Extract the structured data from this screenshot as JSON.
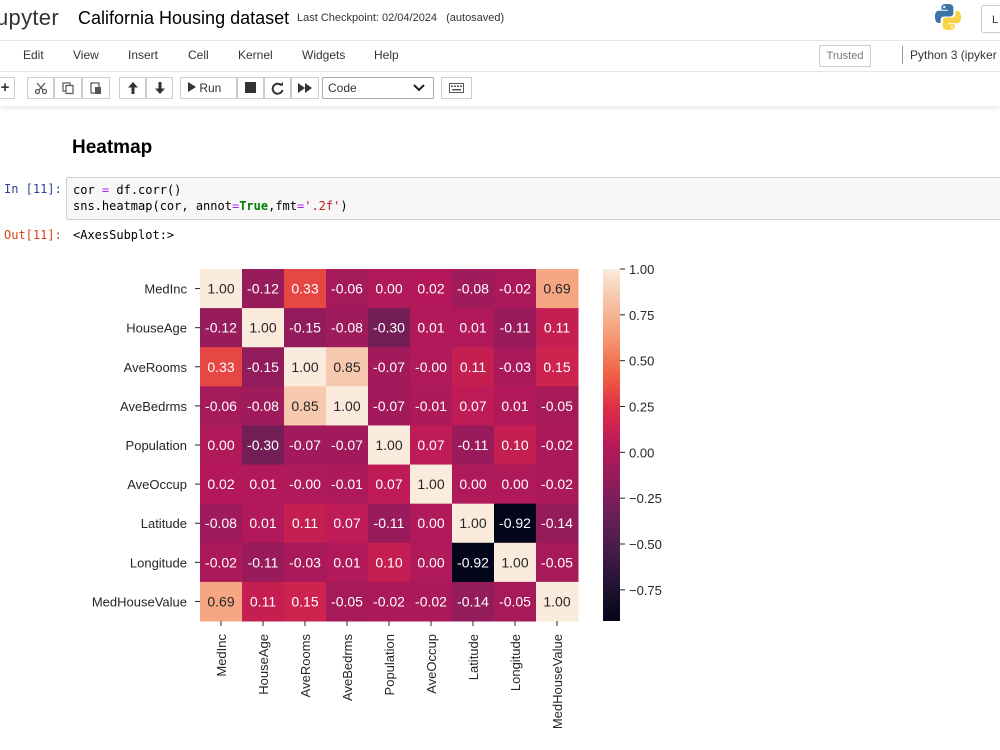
{
  "header": {
    "logo_text": "upyter",
    "notebook_title": "California Housing dataset",
    "checkpoint_label": "Last Checkpoint: 02/04/2024",
    "autosave_status": "(autosaved)",
    "login_label": "L"
  },
  "menubar": {
    "items": [
      "Edit",
      "View",
      "Insert",
      "Cell",
      "Kernel",
      "Widgets",
      "Help"
    ],
    "trusted_label": "Trusted",
    "kernel_label": "Python 3 (ipyker"
  },
  "toolbar": {
    "run_label": "Run",
    "cell_type": "Code"
  },
  "notebook": {
    "heading": "Heatmap",
    "in_prompt": "In [11]:",
    "out_prompt": "Out[11]:",
    "output_text": "<AxesSubplot:>"
  },
  "colors": {
    "accent_in": "#303f9f",
    "accent_out": "#d84315"
  },
  "chart_data": {
    "type": "heatmap",
    "labels": [
      "MedInc",
      "HouseAge",
      "AveRooms",
      "AveBedrms",
      "Population",
      "AveOccup",
      "Latitude",
      "Longitude",
      "MedHouseValue"
    ],
    "values": [
      [
        1.0,
        -0.12,
        0.33,
        -0.06,
        0.0,
        0.02,
        -0.08,
        -0.02,
        0.69
      ],
      [
        -0.12,
        1.0,
        -0.15,
        -0.08,
        -0.3,
        0.01,
        0.01,
        -0.11,
        0.11
      ],
      [
        0.33,
        -0.15,
        1.0,
        0.85,
        -0.07,
        -0.0,
        0.11,
        -0.03,
        0.15
      ],
      [
        -0.06,
        -0.08,
        0.85,
        1.0,
        -0.07,
        -0.01,
        0.07,
        0.01,
        -0.05
      ],
      [
        0.0,
        -0.3,
        -0.07,
        -0.07,
        1.0,
        0.07,
        -0.11,
        0.1,
        -0.02
      ],
      [
        0.02,
        0.01,
        -0.0,
        -0.01,
        0.07,
        1.0,
        0.0,
        0.0,
        -0.02
      ],
      [
        -0.08,
        0.01,
        0.11,
        0.07,
        -0.11,
        0.0,
        1.0,
        -0.92,
        -0.14
      ],
      [
        -0.02,
        -0.11,
        -0.03,
        0.01,
        0.1,
        0.0,
        -0.92,
        1.0,
        -0.05
      ],
      [
        0.69,
        0.11,
        0.15,
        -0.05,
        -0.02,
        -0.02,
        -0.14,
        -0.05,
        1.0
      ]
    ],
    "cell_labels": [
      [
        "1.00",
        "-0.12",
        "0.33",
        "-0.06",
        "0.00",
        "0.02",
        "-0.08",
        "-0.02",
        "0.69"
      ],
      [
        "-0.12",
        "1.00",
        "-0.15",
        "-0.08",
        "-0.30",
        "0.01",
        "0.01",
        "-0.11",
        "0.11"
      ],
      [
        "0.33",
        "-0.15",
        "1.00",
        "0.85",
        "-0.07",
        "-0.00",
        "0.11",
        "-0.03",
        "0.15"
      ],
      [
        "-0.06",
        "-0.08",
        "0.85",
        "1.00",
        "-0.07",
        "-0.01",
        "0.07",
        "0.01",
        "-0.05"
      ],
      [
        "0.00",
        "-0.30",
        "-0.07",
        "-0.07",
        "1.00",
        "0.07",
        "-0.11",
        "0.10",
        "-0.02"
      ],
      [
        "0.02",
        "0.01",
        "-0.00",
        "-0.01",
        "0.07",
        "1.00",
        "0.00",
        "0.00",
        "-0.02"
      ],
      [
        "-0.08",
        "0.01",
        "0.11",
        "0.07",
        "-0.11",
        "0.00",
        "1.00",
        "-0.92",
        "-0.14"
      ],
      [
        "-0.02",
        "-0.11",
        "-0.03",
        "0.01",
        "0.10",
        "0.00",
        "-0.92",
        "1.00",
        "-0.05"
      ],
      [
        "0.69",
        "0.11",
        "0.15",
        "-0.05",
        "-0.02",
        "-0.02",
        "-0.14",
        "-0.05",
        "1.00"
      ]
    ],
    "vmin": -0.92,
    "vmax": 1.0,
    "colormap": "rocket",
    "colorbar_ticks": [
      1.0,
      0.75,
      0.5,
      0.25,
      0.0,
      -0.25,
      -0.5,
      -0.75
    ],
    "colorbar_tick_labels": [
      "1.00",
      "0.75",
      "0.50",
      "0.25",
      "0.00",
      "−0.25",
      "−0.50",
      "−0.75"
    ],
    "grid": false
  }
}
